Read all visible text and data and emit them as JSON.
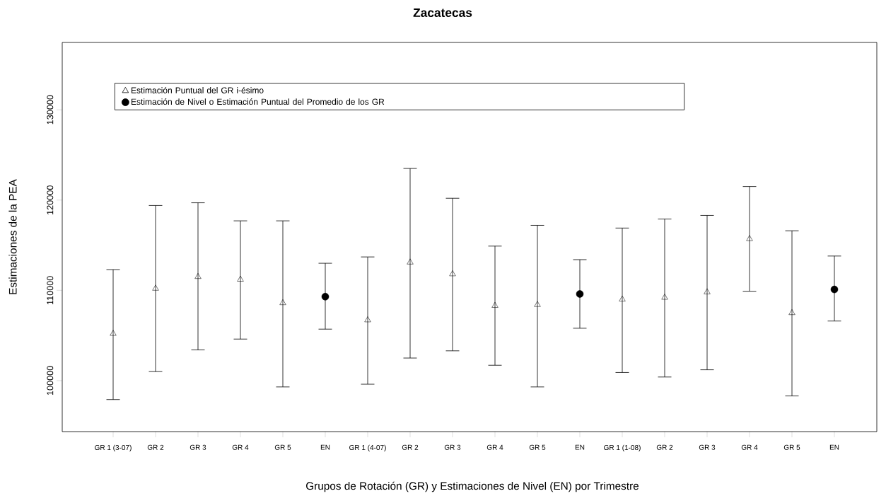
{
  "chart_data": {
    "type": "scatter",
    "title": "Zacatecas",
    "xlabel": "Grupos de Rotación (GR) y Estimaciones de Nivel (EN) por Trimestre",
    "ylabel": "Estimaciones de la PEA",
    "categories": [
      "GR 1 (3-07)",
      "GR 2",
      "GR 3",
      "GR 4",
      "GR 5",
      "EN",
      "GR 1 (4-07)",
      "GR 2",
      "GR 3",
      "GR 4",
      "GR 5",
      "EN",
      "GR 1 (1-08)",
      "GR 2",
      "GR 3",
      "GR 4",
      "GR 5",
      "EN"
    ],
    "series": [
      {
        "name": "Estimación Puntual del GR i-ésimo",
        "color": "#000000",
        "marker": "triangle",
        "values": [
          105200,
          110200,
          111500,
          111200,
          108600,
          null,
          106700,
          113100,
          111800,
          108300,
          108400,
          null,
          109000,
          109200,
          109800,
          115700,
          107500,
          null
        ],
        "errors": [
          [
            97900,
            112300
          ],
          [
            101000,
            119400
          ],
          [
            103400,
            119700
          ],
          [
            104600,
            117700
          ],
          [
            99300,
            117700
          ],
          null,
          [
            99600,
            113700
          ],
          [
            102500,
            123500
          ],
          [
            103300,
            120200
          ],
          [
            101700,
            114900
          ],
          [
            99300,
            117200
          ],
          null,
          [
            100900,
            116900
          ],
          [
            100400,
            117900
          ],
          [
            101200,
            118300
          ],
          [
            109900,
            121500
          ],
          [
            98300,
            116600
          ],
          null
        ]
      },
      {
        "name": "Estimación de Nivel o Estimación Puntual del Promedio de los GR",
        "color": "#000000",
        "marker": "circle",
        "values": [
          null,
          null,
          null,
          null,
          null,
          109300,
          null,
          null,
          null,
          null,
          null,
          109600,
          null,
          null,
          null,
          null,
          null,
          110100
        ],
        "errors": [
          null,
          null,
          null,
          null,
          null,
          [
            105700,
            113000
          ],
          null,
          null,
          null,
          null,
          null,
          [
            105800,
            113400
          ],
          null,
          null,
          null,
          null,
          null,
          [
            106600,
            113800
          ]
        ]
      }
    ],
    "ylim": [
      94350,
      137460
    ],
    "yticks": [
      100000,
      110000,
      120000,
      130000
    ],
    "legend": "top left",
    "grid": false
  }
}
